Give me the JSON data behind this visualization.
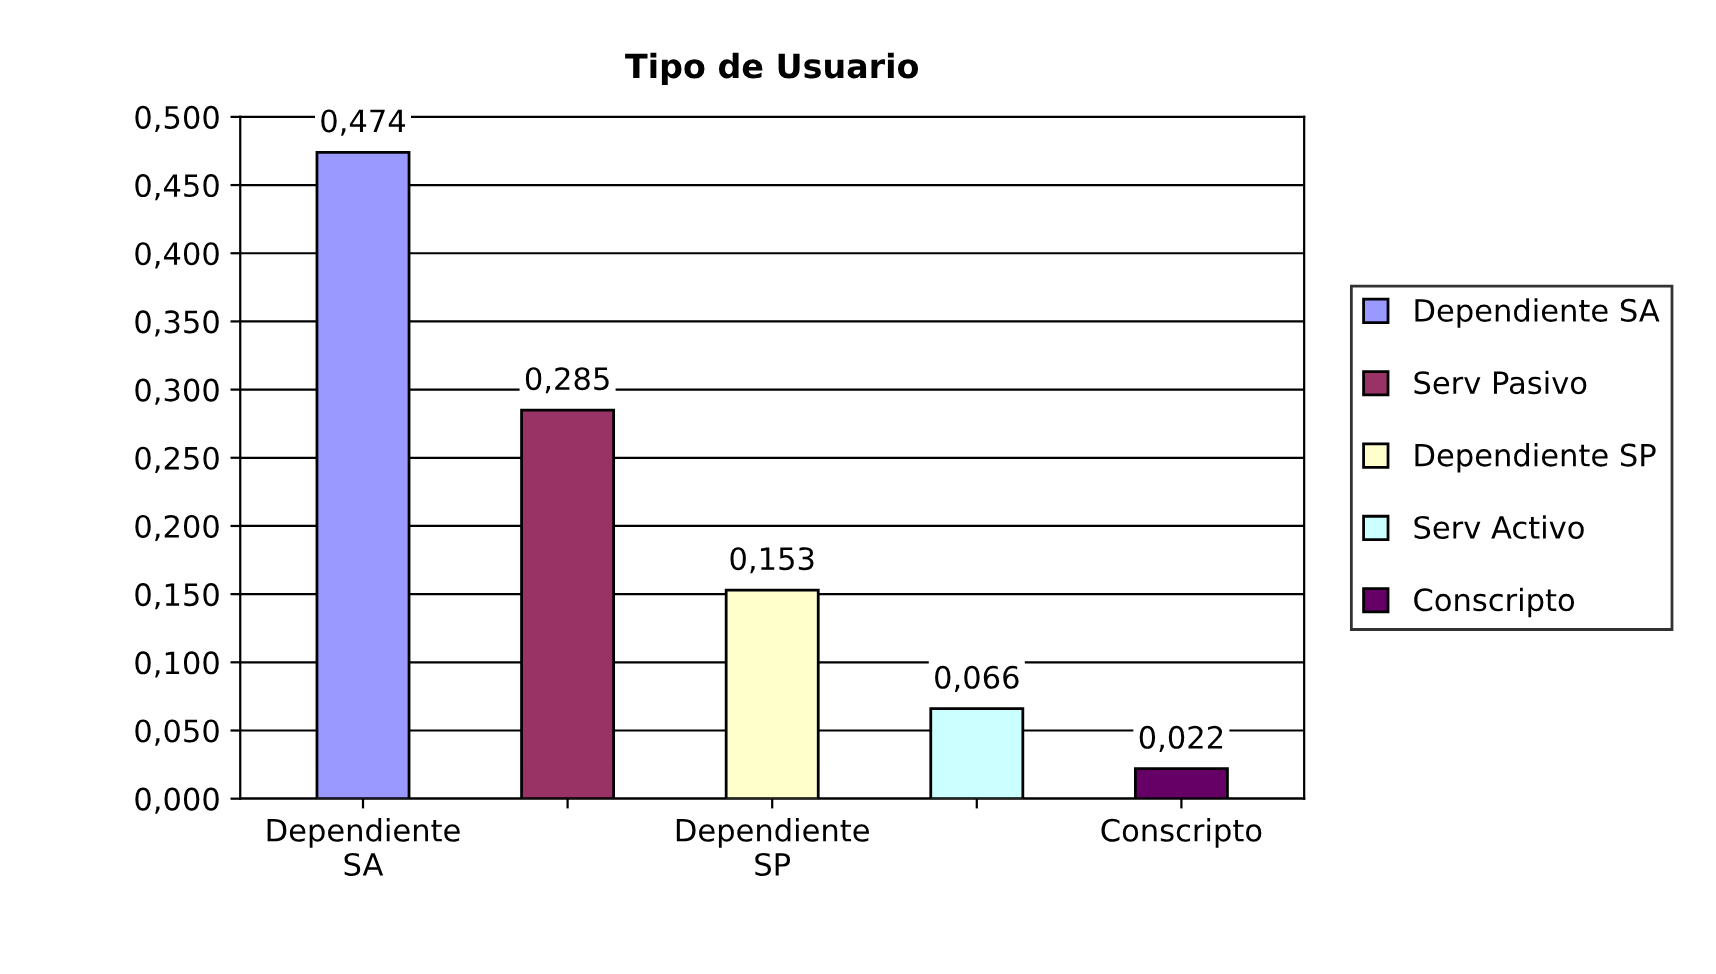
{
  "chart_data": {
    "type": "bar",
    "title": "Tipo de Usuario",
    "categories": [
      "Dependiente\nSA",
      null,
      "Dependiente\nSP",
      null,
      "Conscripto"
    ],
    "series": [
      {
        "name": "Dependiente SA",
        "color": "#9999ff",
        "values": [
          0.474,
          null,
          null,
          null,
          null
        ],
        "value_labels": [
          "0,474",
          null,
          null,
          null,
          null
        ]
      },
      {
        "name": "Serv Pasivo",
        "color": "#993366",
        "values": [
          null,
          0.285,
          null,
          null,
          null
        ],
        "value_labels": [
          null,
          "0,285",
          null,
          null,
          null
        ]
      },
      {
        "name": "Dependiente SP",
        "color": "#ffffcc",
        "values": [
          null,
          null,
          0.153,
          null,
          null
        ],
        "value_labels": [
          null,
          null,
          "0,153",
          null,
          null
        ]
      },
      {
        "name": "Serv Activo",
        "color": "#ccffff",
        "values": [
          null,
          null,
          null,
          0.066,
          null
        ],
        "value_labels": [
          null,
          null,
          null,
          "0,066",
          null
        ]
      },
      {
        "name": "Conscripto",
        "color": "#660066",
        "values": [
          null,
          null,
          null,
          null,
          0.022
        ],
        "value_labels": [
          null,
          null,
          null,
          null,
          "0,022"
        ]
      }
    ],
    "ylim": [
      0,
      0.5
    ],
    "yticks": [
      {
        "value": 0,
        "label": "0,000"
      },
      {
        "value": 0.05,
        "label": "0,050"
      },
      {
        "value": 0.1,
        "label": "0,100"
      },
      {
        "value": 0.15,
        "label": "0,150"
      },
      {
        "value": 0.2,
        "label": "0,200"
      },
      {
        "value": 0.25,
        "label": "0,250"
      },
      {
        "value": 0.3,
        "label": "0,300"
      },
      {
        "value": 0.35,
        "label": "0,350"
      },
      {
        "value": 0.4,
        "label": "0,400"
      },
      {
        "value": 0.45,
        "label": "0,450"
      },
      {
        "value": 0.5,
        "label": "0,500"
      }
    ],
    "grid": "y",
    "legend": "right"
  }
}
